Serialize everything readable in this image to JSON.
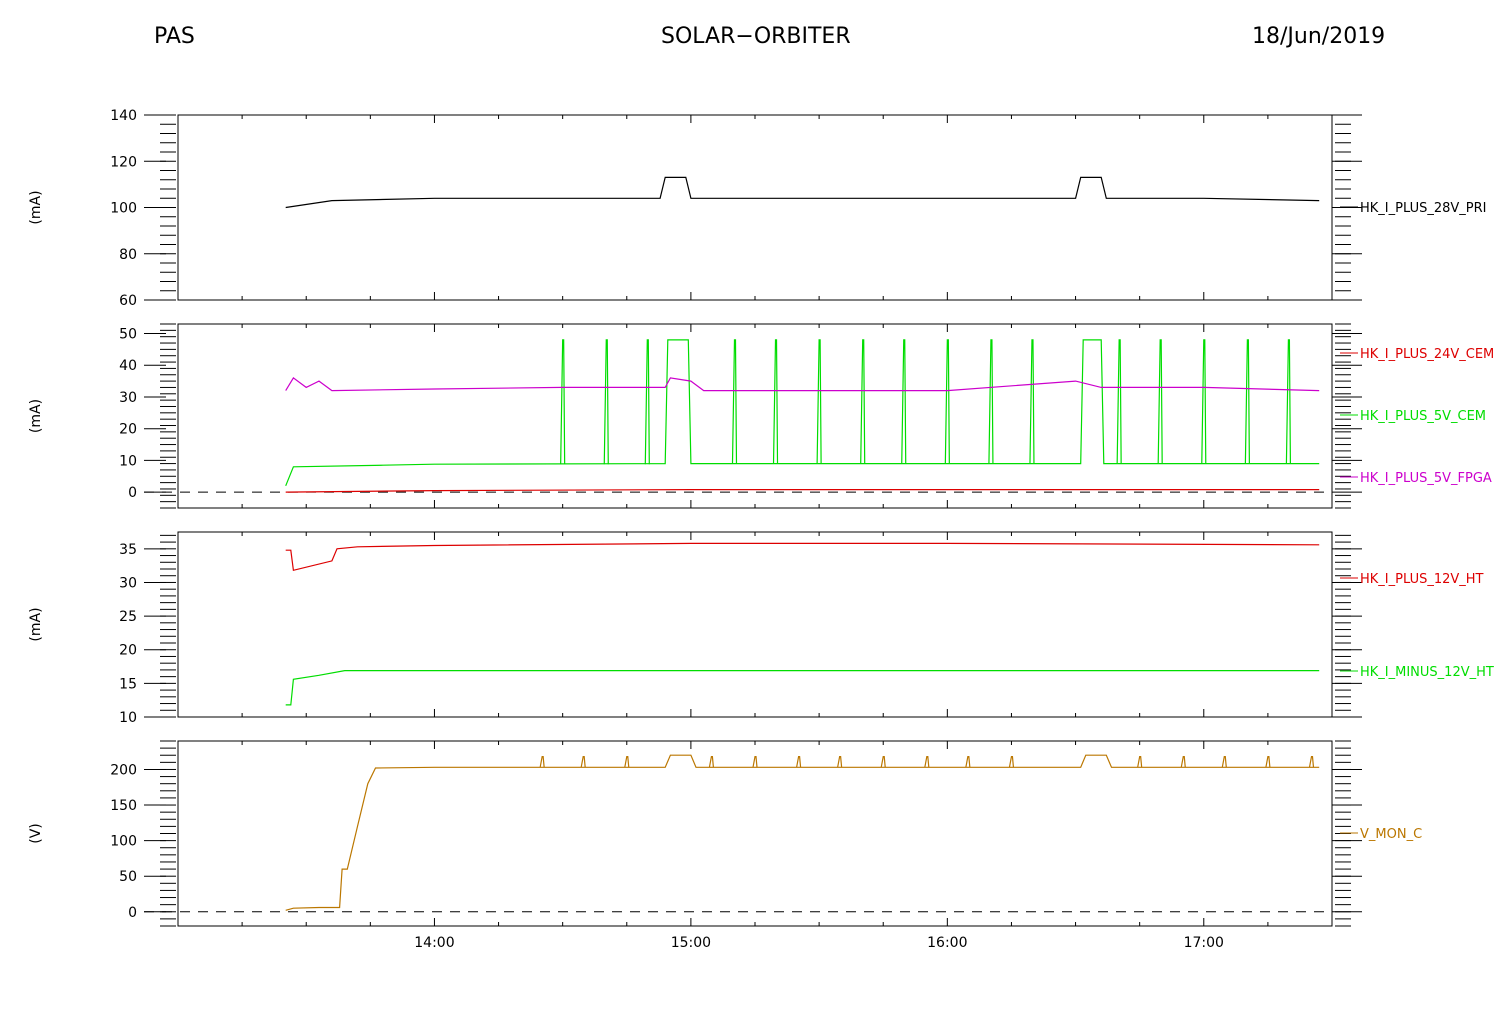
{
  "header": {
    "left": "PAS",
    "center": "SOLAR−ORBITER",
    "right": "18/Jun/2019"
  },
  "chart_data": [
    {
      "type": "line",
      "panel": 1,
      "ylabel": "(mA)",
      "ylim": [
        60,
        140
      ],
      "yticks": [
        60,
        80,
        100,
        120,
        140
      ],
      "series": [
        {
          "name": "HK_I_PLUS_28V_PRI",
          "color": "#000000",
          "points": [
            [
              13.42,
              100
            ],
            [
              13.6,
              103
            ],
            [
              14.0,
              104
            ],
            [
              14.5,
              104
            ],
            [
              14.88,
              104
            ],
            [
              14.9,
              113
            ],
            [
              14.98,
              113
            ],
            [
              15.0,
              104
            ],
            [
              15.5,
              104
            ],
            [
              16.0,
              104
            ],
            [
              16.5,
              104
            ],
            [
              16.52,
              113
            ],
            [
              16.6,
              113
            ],
            [
              16.62,
              104
            ],
            [
              17.0,
              104
            ],
            [
              17.45,
              103
            ]
          ]
        }
      ]
    },
    {
      "type": "line",
      "panel": 2,
      "ylabel": "(mA)",
      "ylim": [
        -5,
        53
      ],
      "yticks": [
        0,
        10,
        20,
        30,
        40,
        50
      ],
      "zero_line": true,
      "series": [
        {
          "name": "HK_I_PLUS_24V_CEM",
          "color": "#dd0000",
          "points": [
            [
              13.42,
              0
            ],
            [
              14.0,
              0.5
            ],
            [
              15.0,
              0.8
            ],
            [
              16.0,
              0.8
            ],
            [
              17.45,
              0.8
            ]
          ]
        },
        {
          "name": "HK_I_PLUS_5V_CEM",
          "color": "#00dd00",
          "spikes": [
            14.5,
            14.67,
            14.83,
            15.17,
            15.33,
            15.5,
            15.67,
            15.83,
            16.0,
            16.17,
            16.33,
            16.67,
            16.83,
            17.0,
            17.17,
            17.33
          ],
          "spike_value": 48,
          "points": [
            [
              13.42,
              2
            ],
            [
              13.45,
              8
            ],
            [
              13.8,
              8.5
            ],
            [
              14.0,
              8.8
            ],
            [
              14.9,
              9
            ],
            [
              14.91,
              48
            ],
            [
              14.99,
              48
            ],
            [
              15.0,
              9
            ],
            [
              16.52,
              9
            ],
            [
              16.53,
              48
            ],
            [
              16.6,
              48
            ],
            [
              16.61,
              9
            ],
            [
              17.45,
              9
            ]
          ]
        },
        {
          "name": "HK_I_PLUS_5V_FPGA",
          "color": "#cc00cc",
          "points": [
            [
              13.42,
              32
            ],
            [
              13.45,
              36
            ],
            [
              13.5,
              33
            ],
            [
              13.55,
              35
            ],
            [
              13.6,
              32
            ],
            [
              14.0,
              32.5
            ],
            [
              14.5,
              33
            ],
            [
              14.9,
              33
            ],
            [
              14.92,
              36
            ],
            [
              15.0,
              35
            ],
            [
              15.05,
              32
            ],
            [
              15.5,
              32
            ],
            [
              16.0,
              32
            ],
            [
              16.5,
              35
            ],
            [
              16.6,
              33
            ],
            [
              17.0,
              33
            ],
            [
              17.45,
              32
            ]
          ]
        }
      ]
    },
    {
      "type": "line",
      "panel": 3,
      "ylabel": "(mA)",
      "ylim": [
        10,
        37.5
      ],
      "yticks": [
        10,
        15,
        20,
        25,
        30,
        35
      ],
      "series": [
        {
          "name": "HK_I_PLUS_12V_HT",
          "color": "#dd0000",
          "points": [
            [
              13.42,
              34.8
            ],
            [
              13.44,
              34.8
            ],
            [
              13.45,
              31.8
            ],
            [
              13.6,
              33.2
            ],
            [
              13.62,
              35
            ],
            [
              13.7,
              35.3
            ],
            [
              14.0,
              35.5
            ],
            [
              15.0,
              35.8
            ],
            [
              16.0,
              35.8
            ],
            [
              17.45,
              35.6
            ]
          ]
        },
        {
          "name": "HK_I_MINUS_12V_HT",
          "color": "#00dd00",
          "points": [
            [
              13.42,
              11.8
            ],
            [
              13.44,
              11.8
            ],
            [
              13.45,
              15.6
            ],
            [
              13.55,
              16.2
            ],
            [
              13.65,
              16.9
            ],
            [
              14.0,
              16.9
            ],
            [
              17.45,
              16.9
            ]
          ]
        }
      ]
    },
    {
      "type": "line",
      "panel": 4,
      "ylabel": "(V)",
      "ylim": [
        -20,
        240
      ],
      "yticks": [
        0,
        50,
        100,
        150,
        200
      ],
      "zero_line": true,
      "xlabel": "",
      "xticks": [
        "14:00",
        "15:00",
        "16:00",
        "17:00"
      ],
      "x_tick_hours": [
        14,
        15,
        16,
        17
      ],
      "xlim": [
        13.0,
        17.5
      ],
      "series": [
        {
          "name": "V_MON_C",
          "color": "#bb7700",
          "spikes": [
            14.42,
            14.58,
            14.75,
            15.08,
            15.25,
            15.42,
            15.58,
            15.75,
            15.92,
            16.08,
            16.25,
            16.75,
            16.92,
            17.08,
            17.25,
            17.42
          ],
          "spike_value": 218,
          "points": [
            [
              13.42,
              2
            ],
            [
              13.45,
              5
            ],
            [
              13.55,
              6
            ],
            [
              13.63,
              6
            ],
            [
              13.64,
              60
            ],
            [
              13.66,
              60
            ],
            [
              13.7,
              120
            ],
            [
              13.74,
              180
            ],
            [
              13.77,
              202
            ],
            [
              14.0,
              203
            ],
            [
              14.9,
              203
            ],
            [
              14.92,
              220
            ],
            [
              15.0,
              220
            ],
            [
              15.02,
              203
            ],
            [
              16.52,
              203
            ],
            [
              16.54,
              220
            ],
            [
              16.62,
              220
            ],
            [
              16.64,
              203
            ],
            [
              17.45,
              203
            ]
          ]
        }
      ]
    }
  ]
}
